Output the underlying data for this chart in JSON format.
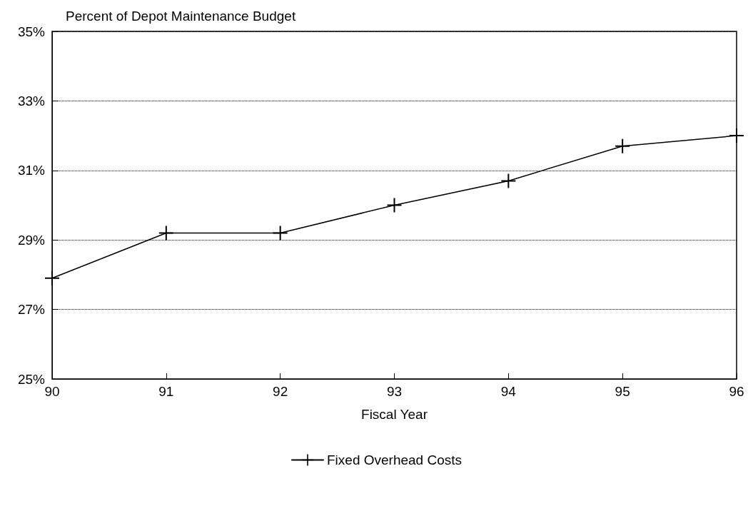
{
  "chart_data": {
    "type": "line",
    "title": "Percent of Depot Maintenance Budget",
    "xlabel": "Fiscal Year",
    "x": [
      90,
      91,
      92,
      93,
      94,
      95,
      96
    ],
    "series": [
      {
        "name": "Fixed Overhead Costs",
        "color": "#000000",
        "values": [
          27.9,
          29.2,
          29.2,
          30.0,
          30.7,
          31.7,
          32.0
        ]
      }
    ],
    "xlim": [
      90,
      96
    ],
    "xticks": [
      90,
      91,
      92,
      93,
      94,
      95,
      96
    ],
    "ylim": [
      25,
      35
    ],
    "yticks": [
      {
        "value": 25,
        "label": "25%"
      },
      {
        "value": 27,
        "label": "27%"
      },
      {
        "value": 29,
        "label": "29%"
      },
      {
        "value": 31,
        "label": "31%"
      },
      {
        "value": 33,
        "label": "33%"
      },
      {
        "value": 35,
        "label": "35%"
      }
    ],
    "grid": "y",
    "legend": "bottom",
    "marker": "cross",
    "line_style": "solid"
  }
}
